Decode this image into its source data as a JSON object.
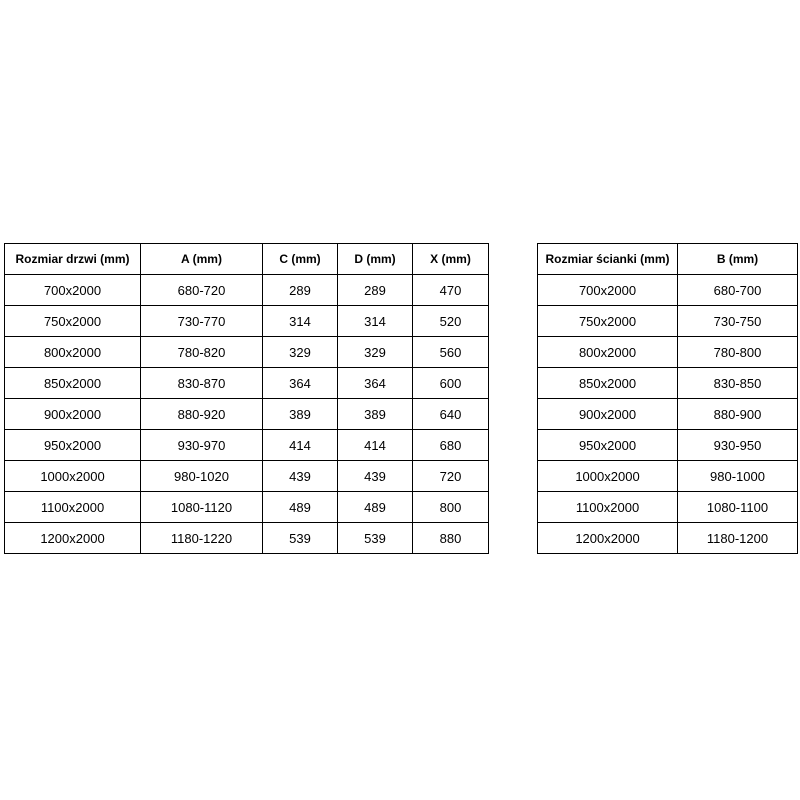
{
  "colors": {
    "border": "#000000",
    "text": "#000000",
    "background": "#ffffff"
  },
  "tables": {
    "doors": {
      "headers": [
        "Rozmiar drzwi (mm)",
        "A (mm)",
        "C (mm)",
        "D (mm)",
        "X (mm)"
      ],
      "rows": [
        [
          "700x2000",
          "680-720",
          "289",
          "289",
          "470"
        ],
        [
          "750x2000",
          "730-770",
          "314",
          "314",
          "520"
        ],
        [
          "800x2000",
          "780-820",
          "329",
          "329",
          "560"
        ],
        [
          "850x2000",
          "830-870",
          "364",
          "364",
          "600"
        ],
        [
          "900x2000",
          "880-920",
          "389",
          "389",
          "640"
        ],
        [
          "950x2000",
          "930-970",
          "414",
          "414",
          "680"
        ],
        [
          "1000x2000",
          "980-1020",
          "439",
          "439",
          "720"
        ],
        [
          "1100x2000",
          "1080-1120",
          "489",
          "489",
          "800"
        ],
        [
          "1200x2000",
          "1180-1220",
          "539",
          "539",
          "880"
        ]
      ]
    },
    "walls": {
      "headers": [
        "Rozmiar ścianki (mm)",
        "B (mm)"
      ],
      "rows": [
        [
          "700x2000",
          "680-700"
        ],
        [
          "750x2000",
          "730-750"
        ],
        [
          "800x2000",
          "780-800"
        ],
        [
          "850x2000",
          "830-850"
        ],
        [
          "900x2000",
          "880-900"
        ],
        [
          "950x2000",
          "930-950"
        ],
        [
          "1000x2000",
          "980-1000"
        ],
        [
          "1100x2000",
          "1080-1100"
        ],
        [
          "1200x2000",
          "1180-1200"
        ]
      ]
    }
  }
}
